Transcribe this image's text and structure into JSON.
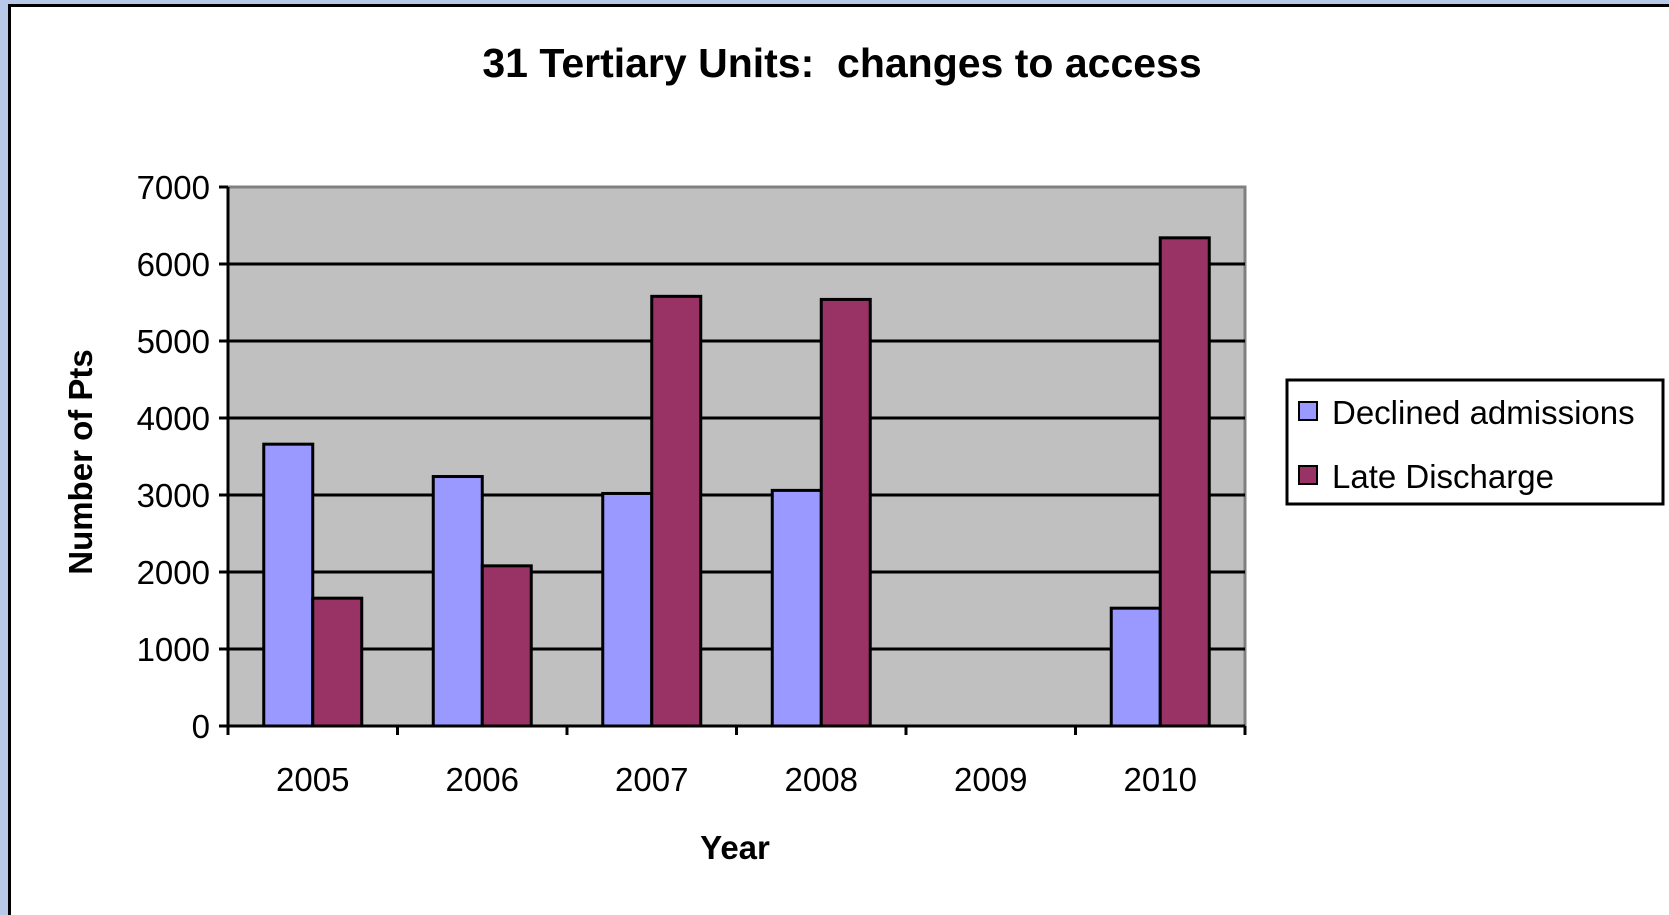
{
  "chart_data": {
    "type": "bar",
    "title": "31 Tertiary Units:  changes to access",
    "xlabel": "Year",
    "ylabel": "Number of Pts",
    "categories": [
      "2005",
      "2006",
      "2007",
      "2008",
      "2009",
      "2010"
    ],
    "series": [
      {
        "name": "Declined admissions",
        "color": "#9999ff",
        "values": [
          3660,
          3240,
          3020,
          3060,
          null,
          1530
        ]
      },
      {
        "name": "Late Discharge",
        "color": "#993366",
        "values": [
          1660,
          2080,
          5580,
          5540,
          null,
          6340
        ]
      }
    ],
    "ylim": [
      0,
      7000
    ],
    "yticks": [
      "0",
      "1000",
      "2000",
      "3000",
      "4000",
      "5000",
      "6000",
      "7000"
    ],
    "grid": true,
    "plot_background": "#c0c0c0",
    "legend_position": "right"
  }
}
